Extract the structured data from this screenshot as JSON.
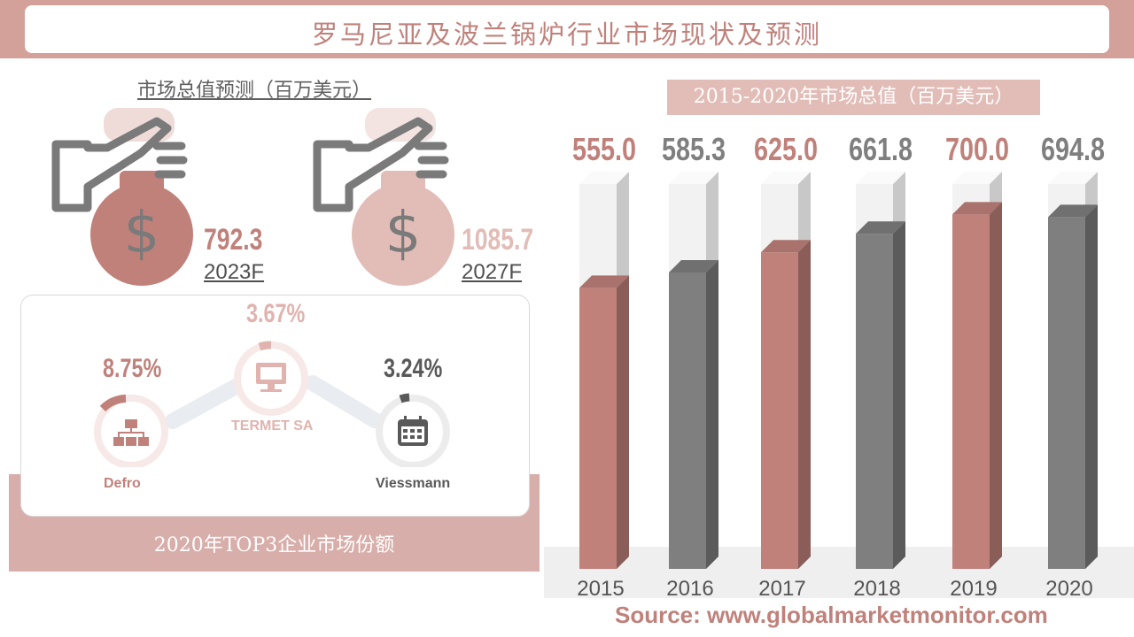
{
  "title": "罗马尼亚及波兰锅炉行业市场现状及预测",
  "forecast": {
    "label": "市场总值预测（百万美元）",
    "items": [
      {
        "value": "792.3",
        "year": "2023F",
        "color": "#c0817b"
      },
      {
        "value": "1085.7",
        "year": "2027F",
        "color": "#e2bdb8"
      }
    ]
  },
  "top3": {
    "caption": "2020年TOP3企业市场份额",
    "companies": [
      {
        "name": "Defro",
        "share": "8.75%",
        "share_value": 8.75,
        "color": "#c0817b",
        "icon": "org-chart-icon"
      },
      {
        "name": "TERMET SA",
        "share": "3.67%",
        "share_value": 3.67,
        "color": "#e0b3ae",
        "icon": "monitor-icon"
      },
      {
        "name": "Viessmann",
        "share": "3.24%",
        "share_value": 3.24,
        "color": "#595959",
        "icon": "calendar-icon"
      }
    ]
  },
  "chart_data": {
    "type": "bar",
    "title": "2015-2020年市场总值（百万美元）",
    "categories": [
      "2015",
      "2016",
      "2017",
      "2018",
      "2019",
      "2020"
    ],
    "values": [
      555.0,
      585.3,
      625.0,
      661.8,
      700.0,
      694.8
    ],
    "value_labels": [
      "555.0",
      "585.3",
      "625.0",
      "661.8",
      "700.0",
      "694.8"
    ],
    "colors": [
      "#c0817b",
      "#7f7f7f",
      "#c0817b",
      "#7f7f7f",
      "#c0817b",
      "#7f7f7f"
    ],
    "ylim": [
      0,
      760
    ],
    "grid": false
  },
  "source": "Source: www.globalmarketmonitor.com"
}
